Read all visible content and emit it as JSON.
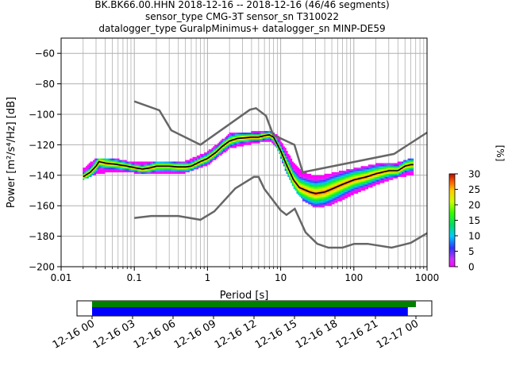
{
  "title_lines": [
    "BK.BK66.00.HHN   2018-12-16 -- 2018-12-16  (46/46 segments)",
    "sensor_type CMG-3T sensor_sn T310022",
    "datalogger_type GuralpMinimus+ datalogger_sn MINP-DE59"
  ],
  "chart_data": {
    "type": "heatmap",
    "xlabel": "Period [s]",
    "ylabel": "Power [m²/s⁴/Hz] [dB]",
    "x_scale": "log",
    "xlim": [
      0.01,
      1000
    ],
    "ylim": [
      -200,
      -50
    ],
    "x_ticks": [
      0.01,
      0.1,
      1,
      10,
      100,
      1000
    ],
    "x_tick_labels": [
      "0.01",
      "0.1",
      "1",
      "10",
      "100",
      "1000"
    ],
    "y_ticks": [
      -60,
      -80,
      -100,
      -120,
      -140,
      -160,
      -180,
      -200
    ],
    "y_tick_labels": [
      "−60",
      "−80",
      "−100",
      "−120",
      "−140",
      "−160",
      "−180",
      "−200"
    ],
    "grid": true,
    "colorbar": {
      "label": "[%]",
      "range": [
        0,
        30
      ],
      "ticks": [
        0,
        5,
        10,
        15,
        20,
        25,
        30
      ],
      "tick_labels": [
        "0",
        "5",
        "10",
        "15",
        "20",
        "25",
        "30"
      ]
    },
    "nhnm": [
      [
        0.1,
        -91.5
      ],
      [
        0.22,
        -97.4
      ],
      [
        0.32,
        -110.5
      ],
      [
        0.8,
        -120
      ],
      [
        3.8,
        -97
      ],
      [
        4.6,
        -96
      ],
      [
        6.3,
        -101
      ],
      [
        7.9,
        -113.5
      ],
      [
        15.4,
        -120
      ],
      [
        20,
        -138
      ],
      [
        354.8,
        -126
      ],
      [
        1000,
        -112
      ]
    ],
    "nlnm": [
      [
        0.1,
        -168
      ],
      [
        0.17,
        -166.7
      ],
      [
        0.4,
        -166.7
      ],
      [
        0.8,
        -169.2
      ],
      [
        1.24,
        -163.7
      ],
      [
        2.4,
        -148.6
      ],
      [
        4.3,
        -141.1
      ],
      [
        5,
        -141.1
      ],
      [
        6,
        -149
      ],
      [
        10,
        -163
      ],
      [
        12,
        -166
      ],
      [
        15.6,
        -162
      ],
      [
        21.9,
        -177.5
      ],
      [
        31.6,
        -185
      ],
      [
        45,
        -187.5
      ],
      [
        70,
        -187.5
      ],
      [
        101,
        -185
      ],
      [
        154,
        -185
      ],
      [
        328,
        -187.5
      ],
      [
        600,
        -184.4
      ],
      [
        1000,
        -178
      ]
    ],
    "median_ppsd": [
      [
        0.02,
        -141
      ],
      [
        0.025,
        -138
      ],
      [
        0.03,
        -134
      ],
      [
        0.033,
        -131
      ],
      [
        0.04,
        -132
      ],
      [
        0.05,
        -132.5
      ],
      [
        0.06,
        -133
      ],
      [
        0.08,
        -134
      ],
      [
        0.1,
        -135
      ],
      [
        0.13,
        -136
      ],
      [
        0.17,
        -135
      ],
      [
        0.2,
        -134
      ],
      [
        0.3,
        -134
      ],
      [
        0.4,
        -134.5
      ],
      [
        0.5,
        -134.5
      ],
      [
        0.6,
        -134
      ],
      [
        0.8,
        -131
      ],
      [
        1,
        -129
      ],
      [
        1.3,
        -125
      ],
      [
        1.6,
        -121
      ],
      [
        2,
        -117.5
      ],
      [
        2.5,
        -116
      ],
      [
        3,
        -115.5
      ],
      [
        4,
        -115
      ],
      [
        5,
        -115
      ],
      [
        6,
        -114
      ],
      [
        7,
        -113.5
      ],
      [
        8,
        -115
      ],
      [
        10,
        -124
      ],
      [
        12,
        -133
      ],
      [
        15,
        -143
      ],
      [
        18,
        -148
      ],
      [
        25,
        -151
      ],
      [
        30,
        -152
      ],
      [
        40,
        -151
      ],
      [
        50,
        -149
      ],
      [
        70,
        -146
      ],
      [
        100,
        -143
      ],
      [
        150,
        -141
      ],
      [
        200,
        -139
      ],
      [
        300,
        -137
      ],
      [
        400,
        -137
      ],
      [
        500,
        -134
      ],
      [
        600,
        -133
      ],
      [
        650,
        -133
      ]
    ],
    "density_band": [
      [
        0.018,
        -143,
        -138
      ],
      [
        0.03,
        -139,
        -129
      ],
      [
        0.05,
        -137,
        -129
      ],
      [
        0.1,
        -138,
        -132
      ],
      [
        0.2,
        -139,
        -131
      ],
      [
        0.5,
        -138,
        -131
      ],
      [
        1,
        -133,
        -125
      ],
      [
        2,
        -122,
        -113
      ],
      [
        4,
        -119,
        -112
      ],
      [
        7,
        -117,
        -111
      ],
      [
        9,
        -122,
        -114
      ],
      [
        12,
        -138,
        -124
      ],
      [
        15,
        -148,
        -132
      ],
      [
        20,
        -156,
        -138
      ],
      [
        30,
        -161,
        -141
      ],
      [
        50,
        -159,
        -139
      ],
      [
        100,
        -152,
        -136
      ],
      [
        200,
        -146,
        -133
      ],
      [
        400,
        -141,
        -132
      ],
      [
        650,
        -139,
        -129
      ]
    ],
    "timeline": {
      "start": "2018-12-16 00:00",
      "end": "2018-12-17 00:00",
      "tick_labels": [
        "12-16 00",
        "12-16 03",
        "12-16 06",
        "12-16 09",
        "12-16 12",
        "12-16 15",
        "12-16 18",
        "12-16 21",
        "12-17 00"
      ],
      "available_data_hours": [
        0,
        24.5
      ],
      "used_segments_hours": [
        0,
        23.4
      ],
      "colors": {
        "available": "#008000",
        "used": "#0000ff"
      }
    }
  }
}
